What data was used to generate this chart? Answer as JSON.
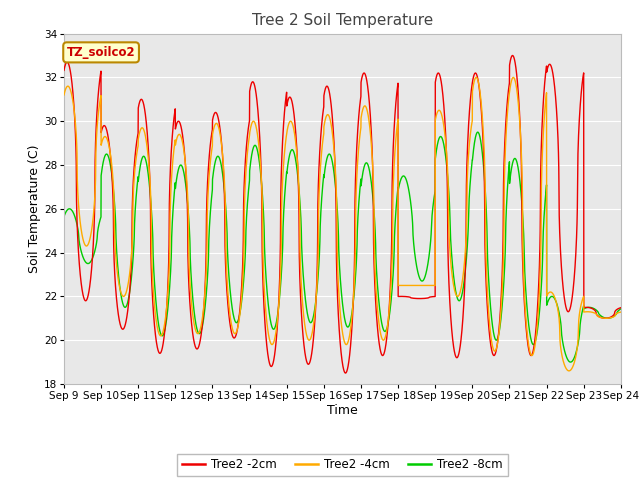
{
  "title": "Tree 2 Soil Temperature",
  "xlabel": "Time",
  "ylabel": "Soil Temperature (C)",
  "ylim": [
    18,
    34
  ],
  "background_color": "#e8e8e8",
  "plot_bg_color": "#e8e8e8",
  "grid_color": "white",
  "annotation_text": "TZ_soilco2",
  "annotation_bg": "#ffffcc",
  "annotation_border": "#bb8800",
  "legend_labels": [
    "Tree2 -2cm",
    "Tree2 -4cm",
    "Tree2 -8cm"
  ],
  "colors": [
    "#ee0000",
    "#ffaa00",
    "#00cc00"
  ],
  "tick_labels": [
    "Sep 9",
    "Sep 10",
    "Sep 11",
    "Sep 12",
    "Sep 13",
    "Sep 14",
    "Sep 15",
    "Sep 16",
    "Sep 17",
    "Sep 18",
    "Sep 19",
    "Sep 20",
    "Sep 21",
    "Sep 22",
    "Sep 23",
    "Sep 24"
  ],
  "yticks": [
    18,
    20,
    22,
    24,
    26,
    28,
    30,
    32,
    34
  ],
  "title_fontsize": 11,
  "axis_label_fontsize": 9,
  "tick_fontsize": 7.5
}
